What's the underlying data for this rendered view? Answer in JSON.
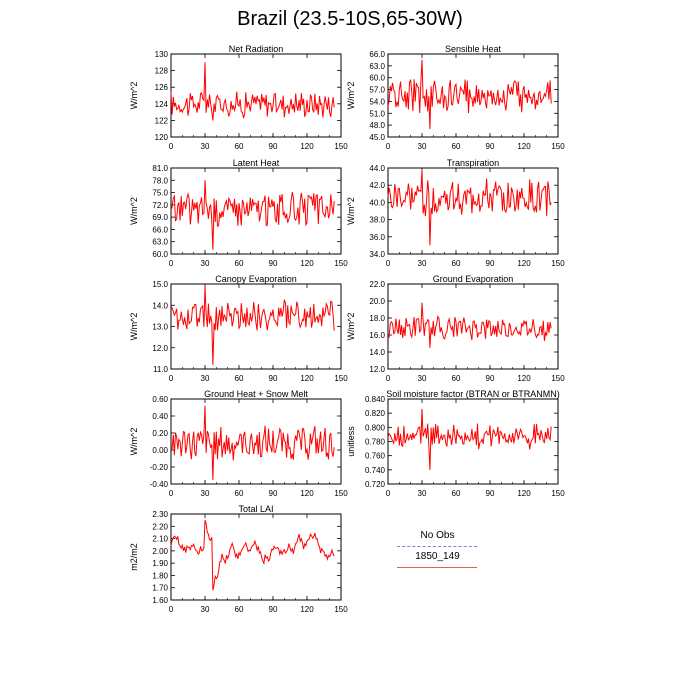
{
  "page": {
    "title": "Brazil (23.5-10S,65-30W)"
  },
  "legend": {
    "items": [
      {
        "label": "No Obs",
        "color": "#8080e0",
        "dashed": true
      },
      {
        "label": "1850_149",
        "color": "#e06060",
        "dashed": false
      }
    ]
  },
  "chart_data": [
    {
      "type": "line",
      "title": "Net Radiation",
      "ylabel": "W/m^2",
      "xlim": [
        0,
        150
      ],
      "xticks": [
        0,
        30,
        60,
        90,
        120,
        150
      ],
      "ylim": [
        120,
        130
      ],
      "yticks": [
        "120",
        "122",
        "124",
        "126",
        "128",
        "130"
      ],
      "series": [
        {
          "name": "1850_149",
          "color": "#ff0000",
          "mean": 124.0,
          "amp": 1.4,
          "min": 122.0,
          "max": 129.0
        }
      ]
    },
    {
      "type": "line",
      "title": "Sensible Heat",
      "ylabel": "W/m^2",
      "xlim": [
        0,
        150
      ],
      "xticks": [
        0,
        30,
        60,
        90,
        120,
        150
      ],
      "ylim": [
        45,
        66
      ],
      "yticks": [
        "45.0",
        "48.0",
        "51.0",
        "54.0",
        "57.0",
        "60.0",
        "63.0",
        "66.0"
      ],
      "series": [
        {
          "name": "1850_149",
          "color": "#ff0000",
          "mean": 55.5,
          "amp": 3.5,
          "min": 47.0,
          "max": 64.5
        }
      ]
    },
    {
      "type": "line",
      "title": "Latent Heat",
      "ylabel": "W/m^2",
      "xlim": [
        0,
        150
      ],
      "xticks": [
        0,
        30,
        60,
        90,
        120,
        150
      ],
      "ylim": [
        60,
        81
      ],
      "yticks": [
        "60.0",
        "63.0",
        "66.0",
        "69.0",
        "72.0",
        "75.0",
        "78.0",
        "81.0"
      ],
      "series": [
        {
          "name": "1850_149",
          "color": "#ff0000",
          "mean": 71.0,
          "amp": 3.5,
          "min": 61.0,
          "max": 78.0
        }
      ]
    },
    {
      "type": "line",
      "title": "Transpiration",
      "ylabel": "W/m^2",
      "xlim": [
        0,
        150
      ],
      "xticks": [
        0,
        30,
        60,
        90,
        120,
        150
      ],
      "ylim": [
        34,
        44
      ],
      "yticks": [
        "34.0",
        "36.0",
        "38.0",
        "40.0",
        "42.0",
        "44.0"
      ],
      "series": [
        {
          "name": "1850_149",
          "color": "#ff0000",
          "mean": 40.5,
          "amp": 1.8,
          "min": 35.0,
          "max": 43.8
        }
      ]
    },
    {
      "type": "line",
      "title": "Canopy Evaporation",
      "ylabel": "W/m^2",
      "xlim": [
        0,
        150
      ],
      "xticks": [
        0,
        30,
        60,
        90,
        120,
        150
      ],
      "ylim": [
        11,
        15
      ],
      "yticks": [
        "11.0",
        "12.0",
        "13.0",
        "14.0",
        "15.0"
      ],
      "series": [
        {
          "name": "1850_149",
          "color": "#ff0000",
          "mean": 13.5,
          "amp": 0.6,
          "min": 11.2,
          "max": 14.9
        }
      ]
    },
    {
      "type": "line",
      "title": "Ground Evaporation",
      "ylabel": "W/m^2",
      "xlim": [
        0,
        150
      ],
      "xticks": [
        0,
        30,
        60,
        90,
        120,
        150
      ],
      "ylim": [
        12,
        22
      ],
      "yticks": [
        "12.0",
        "14.0",
        "16.0",
        "18.0",
        "20.0",
        "22.0"
      ],
      "series": [
        {
          "name": "1850_149",
          "color": "#ff0000",
          "mean": 16.8,
          "amp": 1.2,
          "min": 14.5,
          "max": 19.8
        }
      ]
    },
    {
      "type": "line",
      "title": "Ground Heat + Snow Melt",
      "ylabel": "W/m^2",
      "xlim": [
        0,
        150
      ],
      "xticks": [
        0,
        30,
        60,
        90,
        120,
        150
      ],
      "ylim": [
        -0.4,
        0.6
      ],
      "yticks": [
        "-0.40",
        "-0.20",
        "0.00",
        "0.20",
        "0.40",
        "0.60"
      ],
      "series": [
        {
          "name": "1850_149",
          "color": "#ff0000",
          "mean": 0.08,
          "amp": 0.18,
          "min": -0.35,
          "max": 0.52
        }
      ]
    },
    {
      "type": "line",
      "title": "Soil moisture factor (BTRAN or BTRANMN)",
      "ylabel": "unitless",
      "xlim": [
        0,
        150
      ],
      "xticks": [
        0,
        30,
        60,
        90,
        120,
        150
      ],
      "ylim": [
        0.72,
        0.84
      ],
      "yticks": [
        "0.720",
        "0.740",
        "0.760",
        "0.780",
        "0.800",
        "0.820",
        "0.840"
      ],
      "series": [
        {
          "name": "1850_149",
          "color": "#ff0000",
          "mean": 0.788,
          "amp": 0.015,
          "min": 0.74,
          "max": 0.826
        }
      ]
    },
    {
      "type": "line",
      "title": "Total LAI",
      "ylabel": "m2/m2",
      "xlim": [
        0,
        150
      ],
      "xticks": [
        0,
        30,
        60,
        90,
        120,
        150
      ],
      "ylim": [
        1.6,
        2.3
      ],
      "yticks": [
        "1.60",
        "1.70",
        "1.80",
        "1.90",
        "2.00",
        "2.10",
        "2.20",
        "2.30"
      ],
      "series": [
        {
          "name": "1850_149",
          "color": "#ff0000",
          "mean": 2.02,
          "amp": 0.12,
          "min": 1.68,
          "max": 2.25,
          "smooth": true
        }
      ]
    }
  ]
}
